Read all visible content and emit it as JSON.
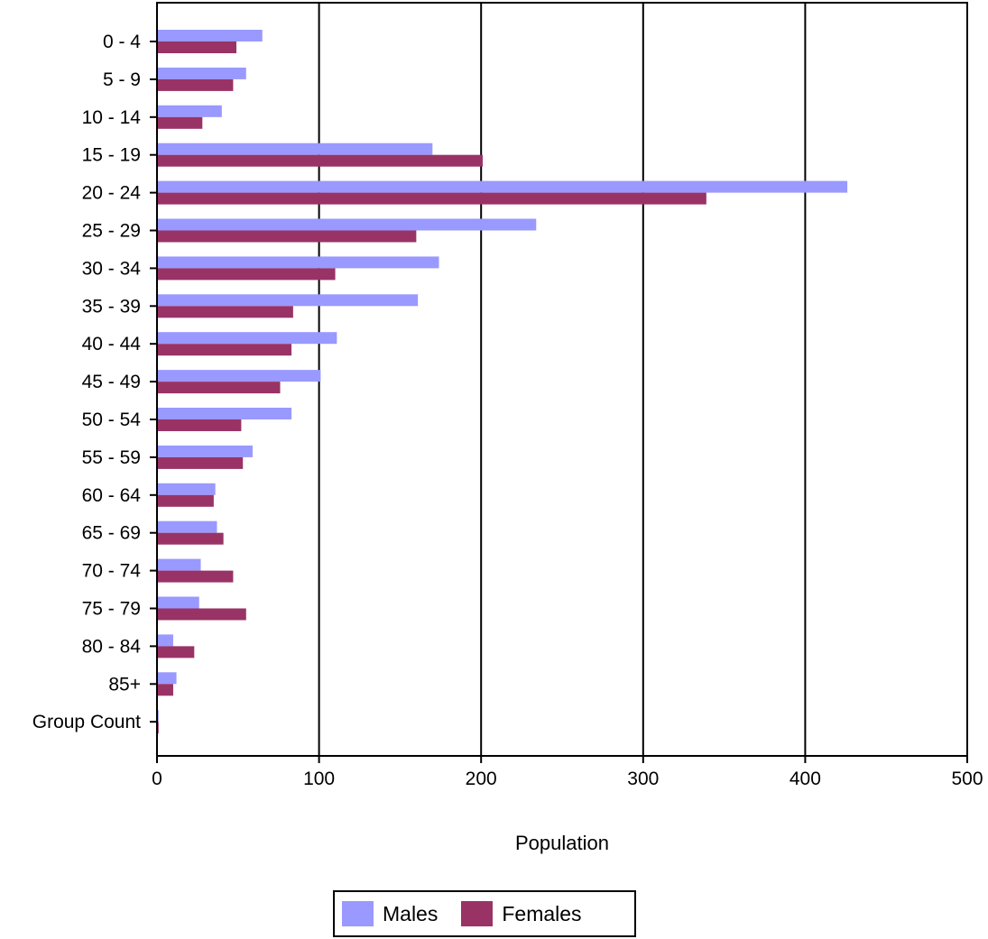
{
  "chart_data": {
    "type": "bar",
    "orientation": "horizontal",
    "xlabel": "Population",
    "ylabel": "",
    "xlim": [
      0,
      500
    ],
    "xticks": [
      0,
      100,
      200,
      300,
      400,
      500
    ],
    "grid": "vertical gridlines",
    "legend_position": "bottom-center",
    "categories": [
      "0 - 4",
      "5 - 9",
      "10 - 14",
      "15 - 19",
      "20 - 24",
      "25 - 29",
      "30 - 34",
      "35 - 39",
      "40 - 44",
      "45 - 49",
      "50 - 54",
      "55 - 59",
      "60 - 64",
      "65 - 69",
      "70 - 74",
      "75 - 79",
      "80 - 84",
      "85+",
      "Group Count"
    ],
    "series": [
      {
        "name": "Males",
        "color": "#9999ff",
        "values": [
          65,
          55,
          40,
          170,
          426,
          234,
          174,
          161,
          111,
          101,
          83,
          59,
          36,
          37,
          27,
          26,
          10,
          12,
          1
        ]
      },
      {
        "name": "Females",
        "color": "#993366",
        "values": [
          49,
          47,
          28,
          201,
          339,
          160,
          110,
          84,
          83,
          76,
          52,
          53,
          35,
          41,
          47,
          55,
          23,
          10,
          1
        ]
      }
    ]
  }
}
